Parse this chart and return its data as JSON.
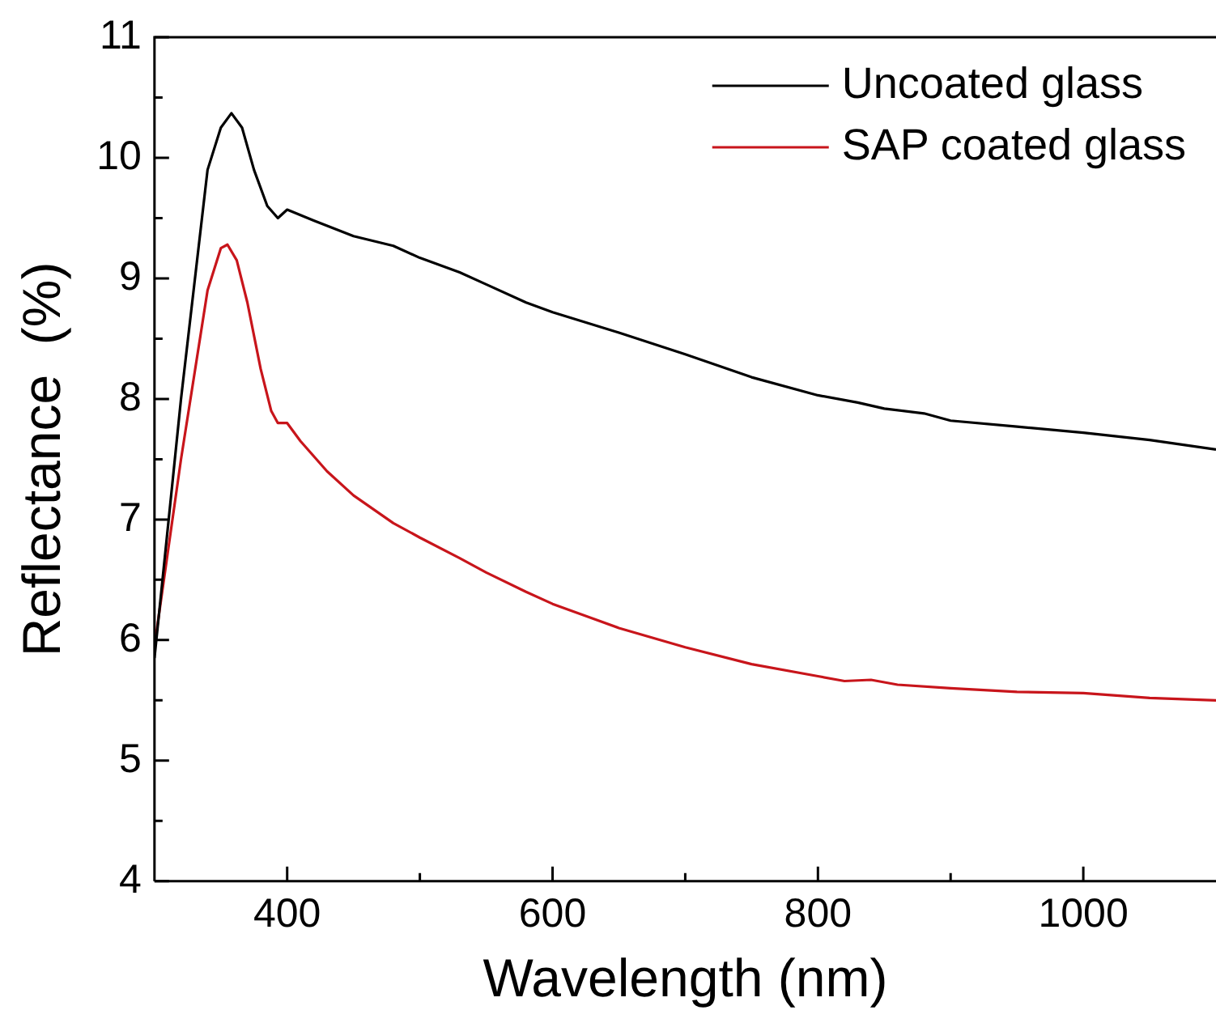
{
  "chart_data": {
    "type": "line",
    "xlabel": "Wavelength (nm)",
    "ylabel": "Reflectance  (%)",
    "xlim": [
      300,
      1100
    ],
    "ylim": [
      4,
      11
    ],
    "xticks": [
      400,
      {
        "value": 500,
        "label": null
      },
      600,
      {
        "value": 700,
        "label": null
      },
      800,
      {
        "value": 900,
        "label": null
      },
      1000
    ],
    "yticks": [
      4,
      {
        "value": 4.5,
        "label": null
      },
      5,
      {
        "value": 5.5,
        "label": null
      },
      6,
      {
        "value": 6.5,
        "label": null
      },
      7,
      {
        "value": 7.5,
        "label": null
      },
      8,
      {
        "value": 8.5,
        "label": null
      },
      9,
      {
        "value": 9.5,
        "label": null
      },
      10,
      {
        "value": 10.5,
        "label": null
      },
      11
    ],
    "grid": false,
    "legend": "top right",
    "marker": "none",
    "line_style": "solid",
    "series": [
      {
        "name": "Uncoated glass",
        "color": "#000000",
        "x": [
          300,
          320,
          340,
          350,
          358,
          366,
          375,
          385,
          393,
          400,
          420,
          450,
          480,
          500,
          530,
          550,
          580,
          600,
          650,
          700,
          750,
          800,
          830,
          850,
          880,
          900,
          950,
          1000,
          1050,
          1100
        ],
        "values": [
          5.85,
          8.0,
          9.9,
          10.25,
          10.37,
          10.25,
          9.9,
          9.6,
          9.5,
          9.57,
          9.48,
          9.35,
          9.27,
          9.17,
          9.05,
          8.95,
          8.8,
          8.72,
          8.55,
          8.37,
          8.18,
          8.03,
          7.97,
          7.92,
          7.88,
          7.82,
          7.77,
          7.72,
          7.66,
          7.58
        ]
      },
      {
        "name": "SAP coated glass",
        "color": "#c8151b",
        "x": [
          300,
          320,
          340,
          350,
          355,
          362,
          370,
          380,
          388,
          393,
          400,
          410,
          430,
          450,
          480,
          500,
          530,
          550,
          580,
          600,
          650,
          700,
          750,
          800,
          820,
          840,
          860,
          900,
          950,
          1000,
          1050,
          1100
        ],
        "values": [
          5.95,
          7.5,
          8.9,
          9.25,
          9.28,
          9.15,
          8.8,
          8.25,
          7.9,
          7.8,
          7.8,
          7.65,
          7.4,
          7.2,
          6.97,
          6.85,
          6.68,
          6.56,
          6.4,
          6.3,
          6.1,
          5.94,
          5.8,
          5.7,
          5.66,
          5.67,
          5.63,
          5.6,
          5.57,
          5.56,
          5.52,
          5.5
        ]
      }
    ]
  }
}
